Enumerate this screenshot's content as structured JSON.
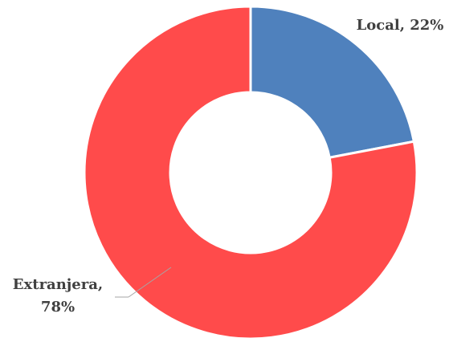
{
  "chart_data": {
    "type": "donut",
    "categories": [
      "Local",
      "Extranjera"
    ],
    "values": [
      22,
      78
    ],
    "value_labels": [
      "Local, 22%",
      "Extranjera, 78%"
    ],
    "colors": [
      "#4f81bd",
      "#ff4b4b"
    ]
  }
}
